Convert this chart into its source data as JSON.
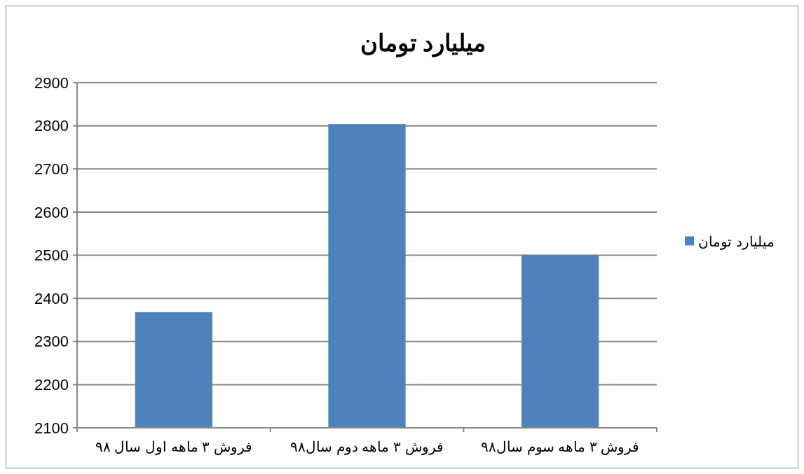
{
  "chart_data": {
    "type": "bar",
    "title": "میلیارد تومان",
    "categories": [
      "فروش ۳ ماهه اول سال ۹۸",
      "فروش ۳ ماهه دوم سال۹۸",
      "فروش ۳ ماهه سوم سال۹۸"
    ],
    "series": [
      {
        "name": "میلیارد تومان",
        "color": "#4f81bd",
        "values": [
          2368,
          2804,
          2500
        ]
      }
    ],
    "ylim": [
      2100,
      2900
    ],
    "yticks": [
      2100,
      2200,
      2300,
      2400,
      2500,
      2600,
      2700,
      2800,
      2900
    ],
    "grid": "y",
    "legend": "right"
  }
}
